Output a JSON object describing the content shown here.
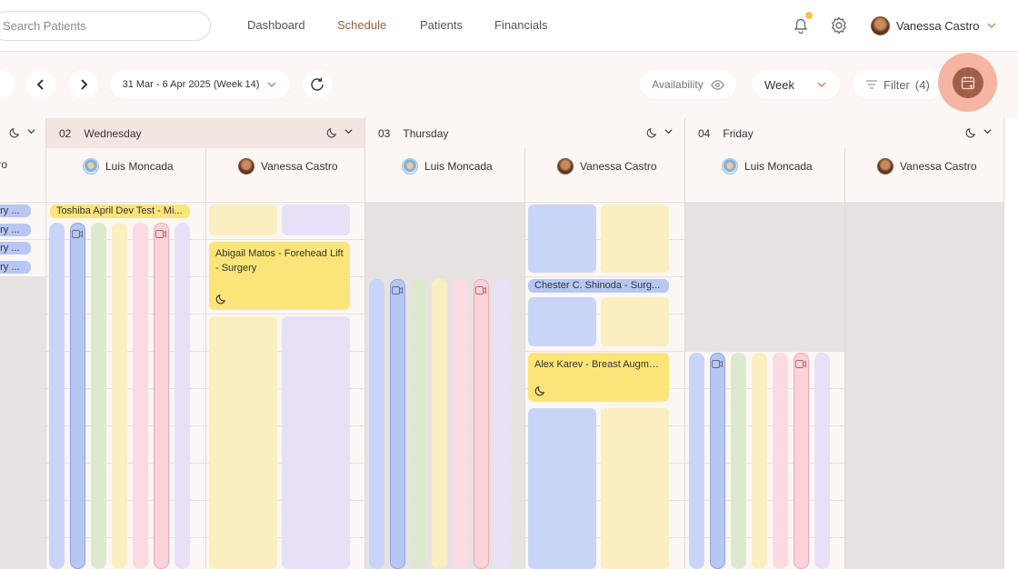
{
  "search": {
    "placeholder": "Search Patients"
  },
  "nav": [
    {
      "label": "Dashboard",
      "active": false
    },
    {
      "label": "Schedule",
      "active": true
    },
    {
      "label": "Patients",
      "active": false
    },
    {
      "label": "Financials",
      "active": false
    }
  ],
  "user": {
    "name": "Vanessa Castro"
  },
  "toolbar": {
    "date_range": "31 Mar - 6 Apr 2025 (Week 14)",
    "availability_label": "Availability",
    "view_label": "Week",
    "filter_label": "Filter",
    "filter_count": "(4)"
  },
  "partial_column": {
    "provider_name_fragment": "tro",
    "events": [
      "ery ...",
      "ery ...",
      "ery ...",
      "ery ..."
    ]
  },
  "days": [
    {
      "num": "02",
      "name": "Wednesday",
      "today": true,
      "providers": [
        "Luis Moncada",
        "Vanessa Castro"
      ],
      "events": [
        {
          "title": "Toshiba April Dev Test - Mi...",
          "color": "yellow"
        },
        {
          "title": "Abigail Matos - Forehead Lift - Surgery",
          "color": "yellow"
        }
      ]
    },
    {
      "num": "03",
      "name": "Thursday",
      "today": false,
      "providers": [
        "Luis Moncada",
        "Vanessa Castro"
      ],
      "events": [
        {
          "title": "Chester C. Shinoda - Surg...",
          "color": "blue"
        },
        {
          "title": "Alex Karev - Breast Augme...",
          "color": "yellow"
        }
      ]
    },
    {
      "num": "04",
      "name": "Friday",
      "today": false,
      "providers": [
        "Luis Moncada",
        "Vanessa Castro"
      ],
      "events": []
    }
  ],
  "colors": {
    "accent": "#a05a3e",
    "fab_ring": "#f5b5a2",
    "fab_core": "#a15f48",
    "today_header": "#f3e5e2",
    "event_yellow": "#fbe579",
    "event_blue": "#b6c7f4"
  },
  "icons": [
    "search-icon",
    "bell-icon",
    "gear-icon",
    "chevron-down-icon",
    "chevron-left-icon",
    "chevron-right-icon",
    "refresh-icon",
    "eye-icon",
    "filter-icon",
    "calendar-add-icon",
    "moon-icon",
    "video-icon"
  ]
}
